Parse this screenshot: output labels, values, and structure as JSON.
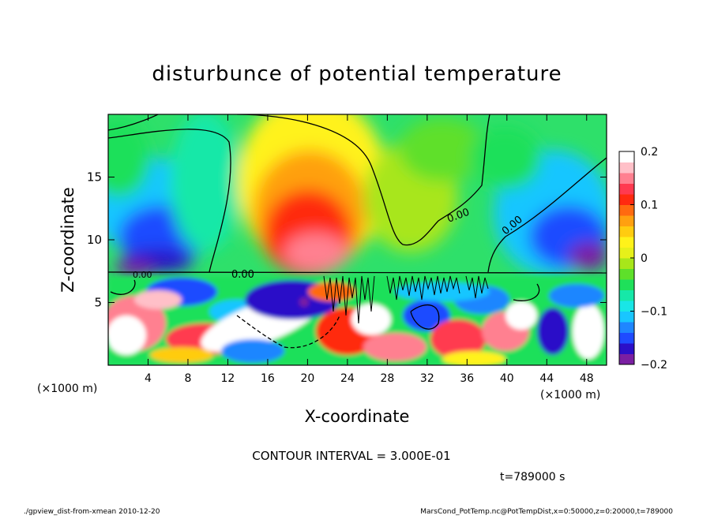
{
  "chart_data": {
    "type": "heatmap",
    "title": "disturbunce of potential temperature",
    "xlabel": "X-coordinate",
    "ylabel": "Z-coordinate",
    "x_units_left": "(×1000 m)",
    "x_units_right": "(×1000 m)",
    "xlim": [
      0,
      50
    ],
    "ylim": [
      0,
      20
    ],
    "x_ticks": [
      4,
      8,
      12,
      16,
      20,
      24,
      28,
      32,
      36,
      40,
      44,
      48
    ],
    "y_ticks": [
      5,
      10,
      15
    ],
    "colorbar": {
      "range": [
        -0.2,
        0.2
      ],
      "tick_values": [
        0.2,
        0.1,
        0,
        -0.1,
        -0.2
      ],
      "tick_labels": [
        "0.2",
        "0.1",
        "0",
        "−0.1",
        "−0.2"
      ],
      "colors": [
        "#7a1fa2",
        "#2b0fc8",
        "#1f4bff",
        "#1f86ff",
        "#19c6ff",
        "#19e6e6",
        "#16e8a8",
        "#1fe05a",
        "#5ee02a",
        "#a8e61a",
        "#e6f01a",
        "#fff21a",
        "#ffcc10",
        "#ffa010",
        "#ff6a10",
        "#ff2a10",
        "#ff3a50",
        "#ff8090",
        "#ffc0c8",
        "#ffffff"
      ]
    },
    "contour_labels": [
      "0.00",
      "0.00",
      "0.00",
      "0.00"
    ],
    "contour_interval_text": "CONTOUR INTERVAL = 3.000E-01",
    "time_text": "t=789000 s",
    "footer_left": "./gpview_dist-from-xmean 2010-12-20",
    "footer_right": "MarsCond_PotTemp.nc@PotTempDist,x=0:50000,z=0:20000,t=789000"
  }
}
